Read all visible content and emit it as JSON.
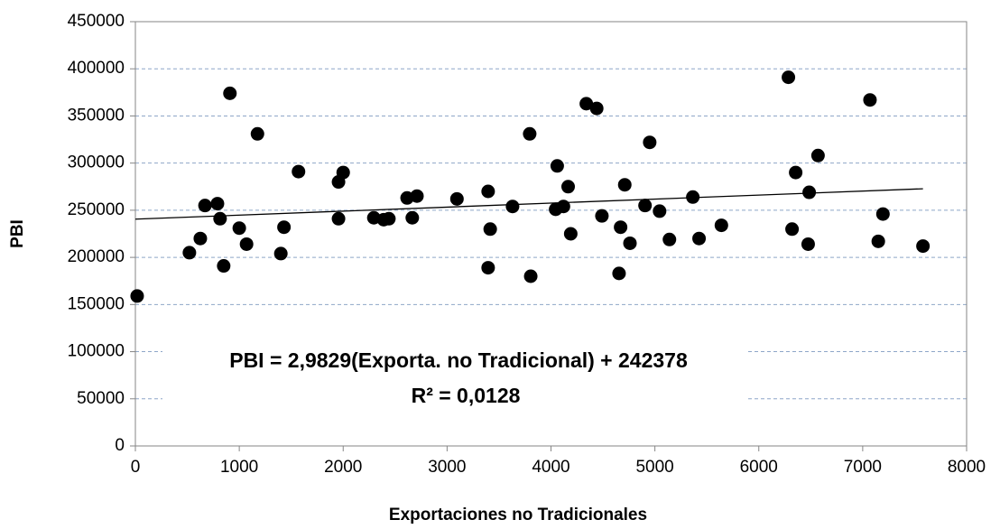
{
  "chart_data": {
    "type": "scatter",
    "xlabel": "Exportaciones no Tradicionales",
    "ylabel": "PBI",
    "annotations": [
      "PBI = 2,9829(Exporta. no Tradicional) + 242378",
      "R² = 0,0128"
    ],
    "x": [
      17,
      520,
      625,
      670,
      790,
      815,
      850,
      910,
      1000,
      1070,
      1175,
      1400,
      1430,
      1570,
      1955,
      1955,
      2000,
      2295,
      2390,
      2440,
      2615,
      2665,
      2710,
      3095,
      3395,
      3395,
      3415,
      3630,
      3805,
      3795,
      4165,
      4045,
      4060,
      4120,
      4340,
      4440,
      4190,
      4490,
      4655,
      4670,
      4710,
      4760,
      4905,
      4950,
      5045,
      5140,
      5365,
      5425,
      5640,
      6285,
      6320,
      6355,
      6485,
      6475,
      6570,
      7070,
      7150,
      7195,
      7580
    ],
    "values": [
      159000,
      205000,
      220000,
      255000,
      257000,
      241000,
      191000,
      374000,
      231000,
      214000,
      331000,
      204000,
      232000,
      291000,
      280000,
      241000,
      290000,
      242000,
      240000,
      241000,
      263000,
      242000,
      265000,
      262000,
      270000,
      189000,
      230000,
      254000,
      180000,
      331000,
      275000,
      251000,
      297000,
      254000,
      363000,
      358000,
      225000,
      244000,
      183000,
      232000,
      277000,
      215000,
      255000,
      322000,
      249000,
      219000,
      264000,
      220000,
      234000,
      391000,
      230000,
      290000,
      269000,
      214000,
      308000,
      367000,
      217000,
      246000,
      212000
    ],
    "color": "#000000",
    "trendline": true,
    "xlim": [
      0,
      8000
    ],
    "xticks": [
      0,
      1000,
      2000,
      3000,
      4000,
      5000,
      6000,
      7000,
      8000
    ],
    "ylim": [
      0,
      450000
    ],
    "yticks": [
      0,
      50000,
      100000,
      150000,
      200000,
      250000,
      300000,
      350000,
      400000,
      450000
    ],
    "grid": true
  }
}
